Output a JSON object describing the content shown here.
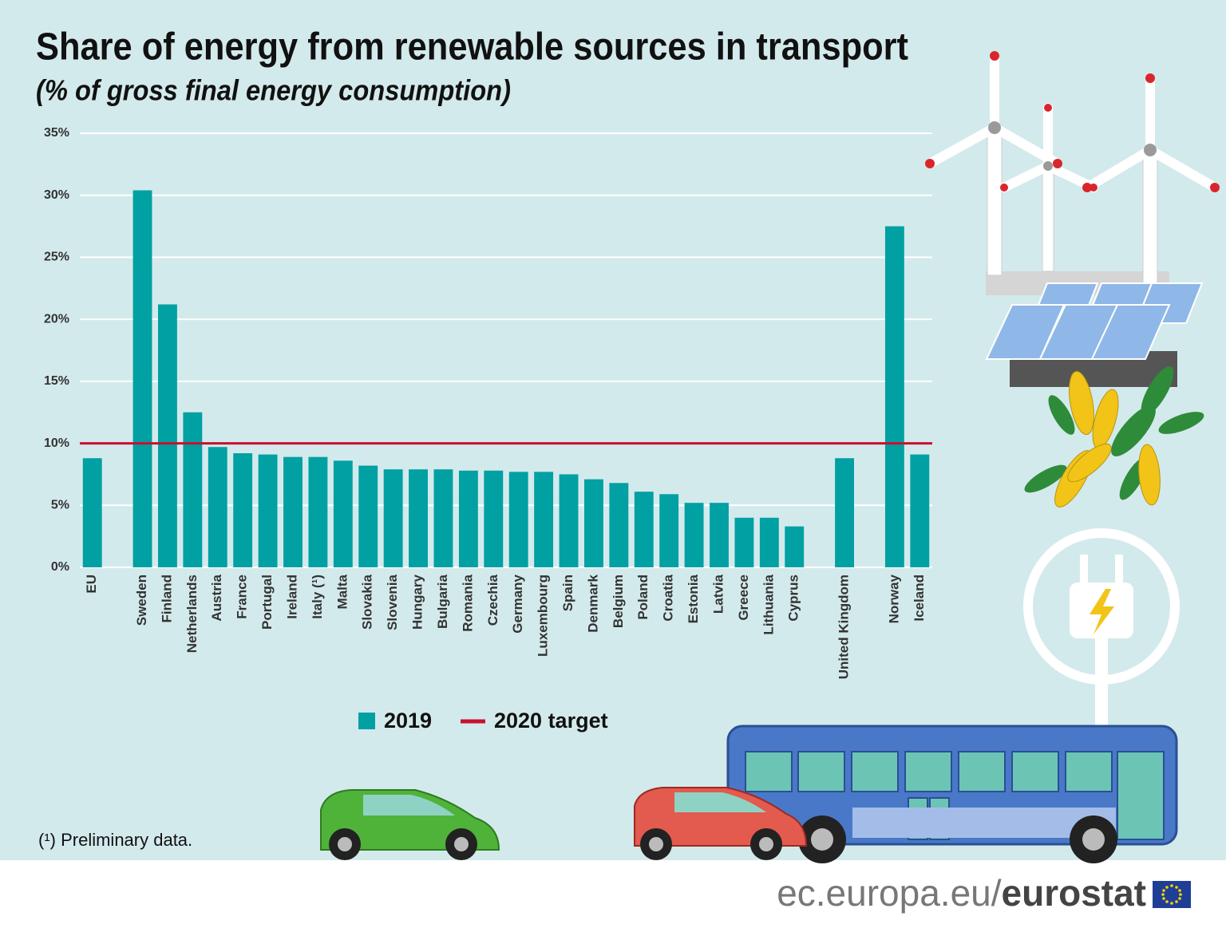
{
  "chart_data": {
    "type": "bar",
    "title": "Share of energy from renewable sources in transport",
    "subtitle": "(% of gross final energy consumption)",
    "categories": [
      "EU",
      null,
      "Sweden",
      "Finland",
      "Netherlands",
      "Austria",
      "France",
      "Portugal",
      "Ireland",
      "Italy (¹)",
      "Malta",
      "Slovakia",
      "Slovenia",
      "Hungary",
      "Bulgaria",
      "Romania",
      "Czechia",
      "Germany",
      "Luxembourg",
      "Spain",
      "Denmark",
      "Belgium",
      "Poland",
      "Croatia",
      "Estonia",
      "Latvia",
      "Greece",
      "Lithuania",
      "Cyprus",
      null,
      "United Kingdom",
      null,
      "Norway",
      "Iceland"
    ],
    "series": [
      {
        "name": "2019",
        "color": "#00a0a3",
        "values": [
          8.8,
          null,
          30.4,
          21.2,
          12.5,
          9.7,
          9.2,
          9.1,
          8.9,
          8.9,
          8.6,
          8.2,
          7.9,
          7.9,
          7.9,
          7.8,
          7.8,
          7.7,
          7.7,
          7.5,
          7.1,
          6.8,
          6.1,
          5.9,
          5.2,
          5.2,
          4.0,
          4.0,
          3.3,
          null,
          8.8,
          null,
          27.5,
          9.1
        ]
      }
    ],
    "target": {
      "name": "2020 target",
      "value": 10,
      "color": "#c8102e"
    },
    "ylim": [
      0,
      35
    ],
    "yticks": [
      {
        "value": 0,
        "label": "0%"
      },
      {
        "value": 5,
        "label": "5%"
      },
      {
        "value": 10,
        "label": "10%"
      },
      {
        "value": 15,
        "label": "15%"
      },
      {
        "value": 20,
        "label": "20%"
      },
      {
        "value": 25,
        "label": "25%"
      },
      {
        "value": 30,
        "label": "30%"
      },
      {
        "value": 35,
        "label": "35%"
      }
    ],
    "grid": true,
    "footnote": "(¹) Preliminary data."
  },
  "footer": {
    "site": "ec.europa.eu/",
    "brand": "eurostat"
  }
}
